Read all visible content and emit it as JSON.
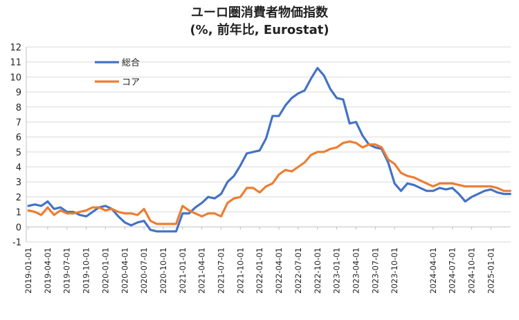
{
  "chart_data": {
    "type": "line",
    "title": "ユーロ圏消費者物価指数",
    "subtitle": "(%, 前年比, Eurostat)",
    "xlabel": "",
    "ylabel": "",
    "ylim": [
      -1,
      12
    ],
    "yticks": [
      -1,
      0,
      1,
      2,
      3,
      4,
      5,
      6,
      7,
      8,
      9,
      10,
      11,
      12
    ],
    "grid": "horizontal",
    "legend_position": "top-left",
    "x": [
      "2019-01",
      "2019-02",
      "2019-03",
      "2019-04",
      "2019-05",
      "2019-06",
      "2019-07",
      "2019-08",
      "2019-09",
      "2019-10",
      "2019-11",
      "2019-12",
      "2020-01",
      "2020-02",
      "2020-03",
      "2020-04",
      "2020-05",
      "2020-06",
      "2020-07",
      "2020-08",
      "2020-09",
      "2020-10",
      "2020-11",
      "2020-12",
      "2021-01",
      "2021-02",
      "2021-03",
      "2021-04",
      "2021-05",
      "2021-06",
      "2021-07",
      "2021-08",
      "2021-09",
      "2021-10",
      "2021-11",
      "2021-12",
      "2022-01",
      "2022-02",
      "2022-03",
      "2022-04",
      "2022-05",
      "2022-06",
      "2022-07",
      "2022-08",
      "2022-09",
      "2022-10",
      "2022-11",
      "2022-12",
      "2023-01",
      "2023-02",
      "2023-03",
      "2023-04",
      "2023-05",
      "2023-06",
      "2023-07",
      "2023-08",
      "2023-09",
      "2023-10",
      "2023-11",
      "2023-12",
      "2024-01",
      "2024-02",
      "2024-03",
      "2024-04",
      "2024-05",
      "2024-06",
      "2024-07",
      "2024-08",
      "2024-09",
      "2024-10",
      "2024-11",
      "2024-12",
      "2025-01",
      "2025-02",
      "2025-03",
      "2025-04"
    ],
    "xtick_labels": [
      "2019-01-01",
      "2019-04-01",
      "2019-07-01",
      "2019-10-01",
      "2020-01-01",
      "2020-04-01",
      "2020-07-01",
      "2020-10-01",
      "2021-01-01",
      "2021-04-01",
      "2021-07-01",
      "2021-10-01",
      "2022-01-01",
      "2022-04-01",
      "2022-07-01",
      "2022-10-01",
      "2023-01-01",
      "2023-04-01",
      "2023-07-01",
      "2023-10-01",
      "2024-04-01",
      "2024-07-01",
      "2024-10-01",
      "2025-01-01"
    ],
    "series": [
      {
        "name": "総合",
        "color": "#4472C4",
        "values": [
          1.4,
          1.5,
          1.4,
          1.7,
          1.2,
          1.3,
          1.0,
          1.0,
          0.8,
          0.7,
          1.0,
          1.3,
          1.4,
          1.2,
          0.7,
          0.3,
          0.1,
          0.3,
          0.4,
          -0.2,
          -0.3,
          -0.3,
          -0.3,
          -0.3,
          0.9,
          0.9,
          1.3,
          1.6,
          2.0,
          1.9,
          2.2,
          3.0,
          3.4,
          4.1,
          4.9,
          5.0,
          5.1,
          5.9,
          7.4,
          7.4,
          8.1,
          8.6,
          8.9,
          9.1,
          9.9,
          10.6,
          10.1,
          9.2,
          8.6,
          8.5,
          6.9,
          7.0,
          6.1,
          5.5,
          5.3,
          5.2,
          4.3,
          2.9,
          2.4,
          2.9,
          2.8,
          2.6,
          2.4,
          2.4,
          2.6,
          2.5,
          2.6,
          2.2,
          1.7,
          2.0,
          2.2,
          2.4,
          2.5,
          2.3,
          2.2,
          2.2
        ]
      },
      {
        "name": "コア",
        "color": "#ED7D31",
        "values": [
          1.1,
          1.0,
          0.8,
          1.3,
          0.8,
          1.1,
          0.9,
          0.9,
          1.0,
          1.1,
          1.3,
          1.3,
          1.1,
          1.2,
          1.0,
          0.9,
          0.9,
          0.8,
          1.2,
          0.4,
          0.2,
          0.2,
          0.2,
          0.2,
          1.4,
          1.1,
          0.9,
          0.7,
          0.9,
          0.9,
          0.7,
          1.6,
          1.9,
          2.0,
          2.6,
          2.6,
          2.3,
          2.7,
          2.9,
          3.5,
          3.8,
          3.7,
          4.0,
          4.3,
          4.8,
          5.0,
          5.0,
          5.2,
          5.3,
          5.6,
          5.7,
          5.6,
          5.3,
          5.5,
          5.5,
          5.3,
          4.5,
          4.2,
          3.6,
          3.4,
          3.3,
          3.1,
          2.9,
          2.7,
          2.9,
          2.9,
          2.9,
          2.8,
          2.7,
          2.7,
          2.7,
          2.7,
          2.7,
          2.6,
          2.4,
          2.4
        ]
      }
    ]
  }
}
